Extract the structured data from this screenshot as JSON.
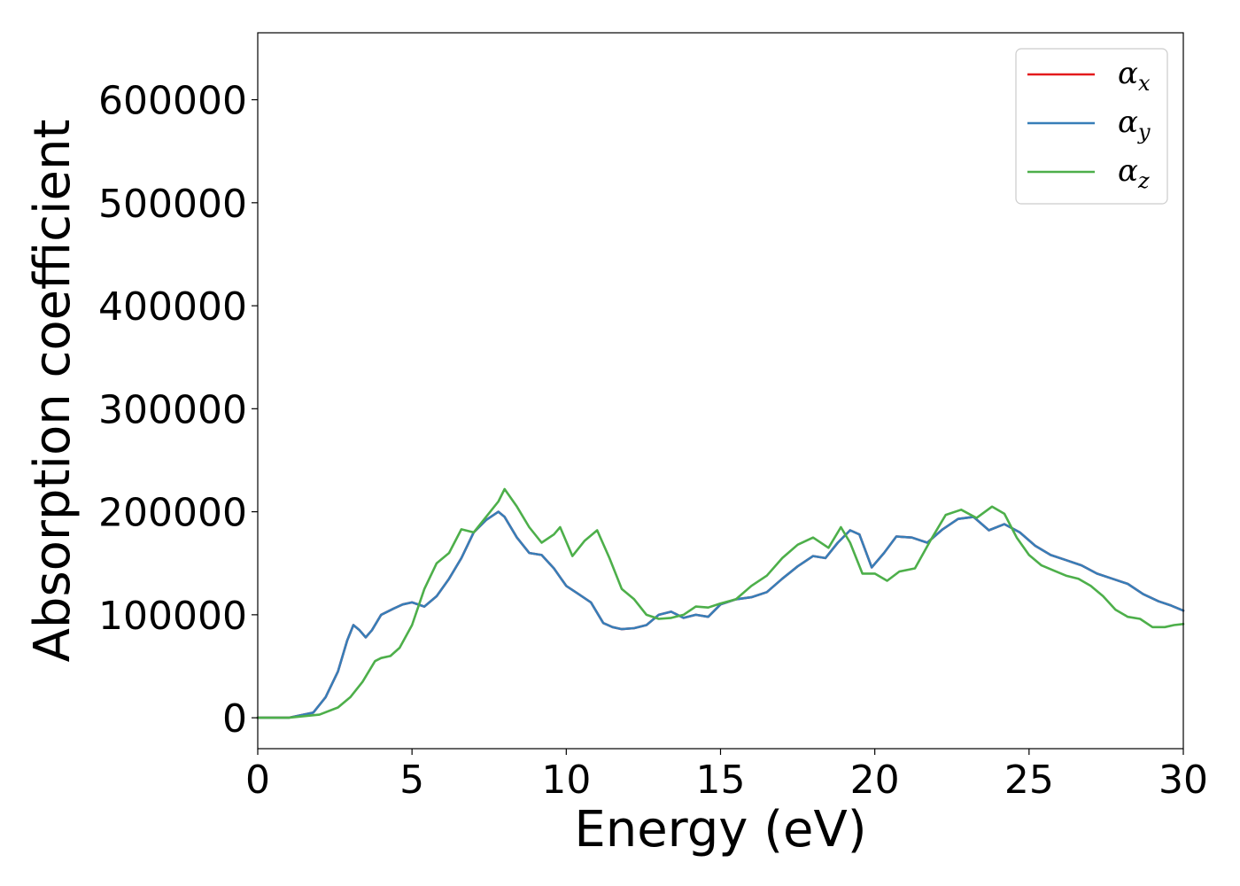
{
  "chart_data": {
    "type": "line",
    "xlabel": "Energy (eV)",
    "ylabel": "Absorption coefficient",
    "xlim": [
      0,
      30
    ],
    "ylim": [
      -30000,
      665000
    ],
    "xticks": [
      0,
      5,
      10,
      15,
      20,
      25,
      30
    ],
    "xtick_labels": [
      "0",
      "5",
      "10",
      "15",
      "20",
      "25",
      "30"
    ],
    "yticks": [
      0,
      100000,
      200000,
      300000,
      400000,
      500000,
      600000
    ],
    "ytick_labels": [
      "0",
      "100000",
      "200000",
      "300000",
      "400000",
      "500000",
      "600000"
    ],
    "grid": false,
    "legend_position": "top-right",
    "series": [
      {
        "name": "α",
        "sub": "x",
        "color": "#e41a1c",
        "x": [
          0,
          1,
          1.8,
          2.2,
          2.6,
          2.9,
          3.1,
          3.3,
          3.5,
          3.7,
          4.0,
          4.4,
          4.7,
          5.0,
          5.4,
          5.8,
          6.2,
          6.6,
          7.0,
          7.4,
          7.8,
          8.0,
          8.4,
          8.8,
          9.2,
          9.6,
          10.0,
          10.4,
          10.8,
          11.2,
          11.5,
          11.8,
          12.2,
          12.6,
          13.0,
          13.4,
          13.8,
          14.2,
          14.6,
          15.0,
          15.5,
          16.0,
          16.5,
          17.0,
          17.5,
          18.0,
          18.4,
          18.8,
          19.2,
          19.5,
          19.9,
          20.3,
          20.7,
          21.2,
          21.7,
          22.2,
          22.7,
          23.2,
          23.7,
          24.2,
          24.7,
          25.2,
          25.7,
          26.2,
          26.7,
          27.2,
          27.7,
          28.2,
          28.7,
          29.2,
          29.6,
          30.0
        ],
        "y": [
          0,
          0,
          5000,
          20000,
          45000,
          75000,
          90000,
          85000,
          78000,
          85000,
          100000,
          106000,
          110000,
          112000,
          108000,
          118000,
          135000,
          155000,
          180000,
          192000,
          200000,
          195000,
          175000,
          160000,
          158000,
          145000,
          128000,
          120000,
          112000,
          92000,
          88000,
          86000,
          87000,
          90000,
          100000,
          103000,
          97000,
          100000,
          98000,
          110000,
          115000,
          117000,
          122000,
          135000,
          147000,
          157000,
          155000,
          170000,
          182000,
          178000,
          146000,
          160000,
          176000,
          175000,
          170000,
          183000,
          193000,
          195000,
          182000,
          188000,
          180000,
          167000,
          158000,
          153000,
          148000,
          140000,
          135000,
          130000,
          120000,
          113000,
          109000,
          104000
        ]
      },
      {
        "name": "α",
        "sub": "y",
        "color": "#377eb8",
        "x": [
          0,
          1,
          1.8,
          2.2,
          2.6,
          2.9,
          3.1,
          3.3,
          3.5,
          3.7,
          4.0,
          4.4,
          4.7,
          5.0,
          5.4,
          5.8,
          6.2,
          6.6,
          7.0,
          7.4,
          7.8,
          8.0,
          8.4,
          8.8,
          9.2,
          9.6,
          10.0,
          10.4,
          10.8,
          11.2,
          11.5,
          11.8,
          12.2,
          12.6,
          13.0,
          13.4,
          13.8,
          14.2,
          14.6,
          15.0,
          15.5,
          16.0,
          16.5,
          17.0,
          17.5,
          18.0,
          18.4,
          18.8,
          19.2,
          19.5,
          19.9,
          20.3,
          20.7,
          21.2,
          21.7,
          22.2,
          22.7,
          23.2,
          23.7,
          24.2,
          24.7,
          25.2,
          25.7,
          26.2,
          26.7,
          27.2,
          27.7,
          28.2,
          28.7,
          29.2,
          29.6,
          30.0
        ],
        "y": [
          0,
          0,
          5000,
          20000,
          45000,
          75000,
          90000,
          85000,
          78000,
          85000,
          100000,
          106000,
          110000,
          112000,
          108000,
          118000,
          135000,
          155000,
          180000,
          192000,
          200000,
          195000,
          175000,
          160000,
          158000,
          145000,
          128000,
          120000,
          112000,
          92000,
          88000,
          86000,
          87000,
          90000,
          100000,
          103000,
          97000,
          100000,
          98000,
          110000,
          115000,
          117000,
          122000,
          135000,
          147000,
          157000,
          155000,
          170000,
          182000,
          178000,
          146000,
          160000,
          176000,
          175000,
          170000,
          183000,
          193000,
          195000,
          182000,
          188000,
          180000,
          167000,
          158000,
          153000,
          148000,
          140000,
          135000,
          130000,
          120000,
          113000,
          109000,
          104000
        ]
      },
      {
        "name": "α",
        "sub": "z",
        "color": "#4daf4a",
        "x": [
          0,
          1,
          2.0,
          2.6,
          3.0,
          3.4,
          3.8,
          4.0,
          4.3,
          4.6,
          5.0,
          5.4,
          5.8,
          6.2,
          6.6,
          7.0,
          7.4,
          7.8,
          8.0,
          8.4,
          8.8,
          9.2,
          9.6,
          9.8,
          10.2,
          10.6,
          11.0,
          11.4,
          11.8,
          12.2,
          12.6,
          13.0,
          13.4,
          13.8,
          14.2,
          14.6,
          15.0,
          15.5,
          16.0,
          16.5,
          17.0,
          17.5,
          18.0,
          18.5,
          18.9,
          19.2,
          19.6,
          20.0,
          20.4,
          20.8,
          21.3,
          21.8,
          22.3,
          22.8,
          23.3,
          23.8,
          24.2,
          24.6,
          25.0,
          25.4,
          25.8,
          26.2,
          26.6,
          27.0,
          27.4,
          27.8,
          28.2,
          28.6,
          29.0,
          29.4,
          29.7,
          30.0
        ],
        "y": [
          0,
          0,
          3000,
          10000,
          20000,
          35000,
          55000,
          58000,
          60000,
          68000,
          90000,
          125000,
          150000,
          160000,
          183000,
          180000,
          195000,
          210000,
          222000,
          205000,
          185000,
          170000,
          178000,
          185000,
          157000,
          172000,
          182000,
          155000,
          125000,
          115000,
          100000,
          96000,
          97000,
          100000,
          108000,
          107000,
          111000,
          115000,
          128000,
          138000,
          155000,
          168000,
          175000,
          165000,
          185000,
          170000,
          140000,
          140000,
          133000,
          142000,
          145000,
          172000,
          197000,
          202000,
          194000,
          205000,
          198000,
          175000,
          158000,
          148000,
          143000,
          138000,
          135000,
          128000,
          118000,
          105000,
          98000,
          96000,
          88000,
          88000,
          90000,
          91000
        ]
      }
    ]
  }
}
